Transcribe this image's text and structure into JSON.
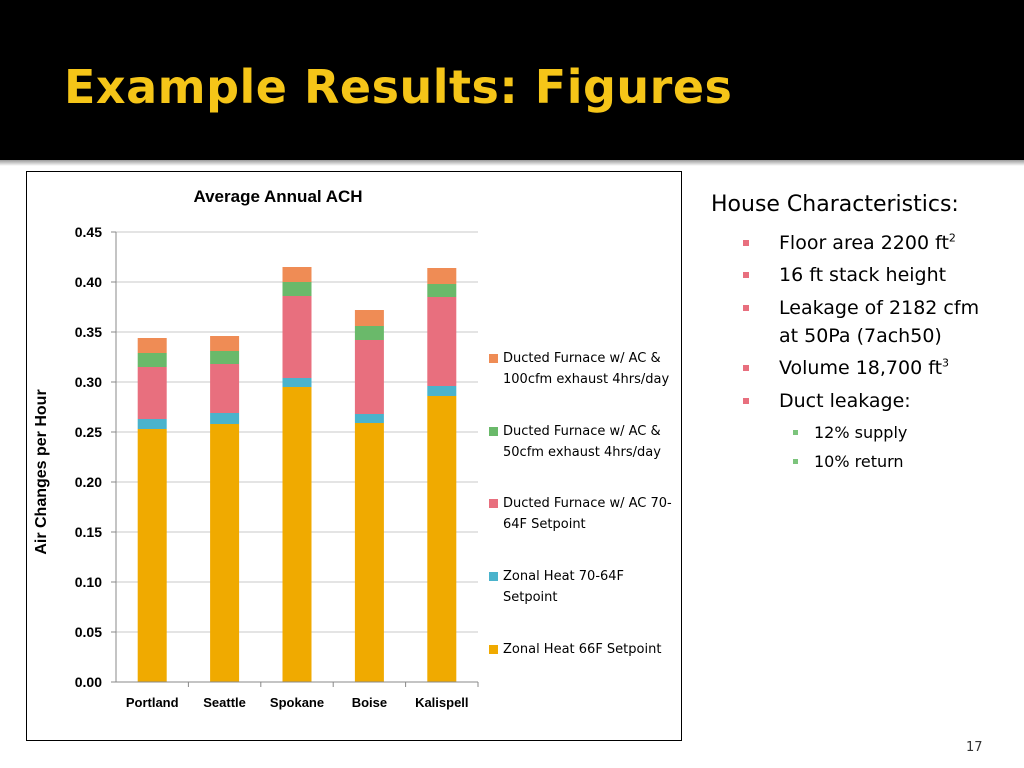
{
  "slide": {
    "title": "Example Results: Figures",
    "page_number": "17",
    "title_color": "#f5c518"
  },
  "house": {
    "heading": "House Characteristics:",
    "bullets": [
      {
        "text": "Floor area 2200 ft",
        "sup": "2"
      },
      {
        "text": "16 ft stack height",
        "sup": ""
      },
      {
        "text": "Leakage of 2182 cfm at 50Pa (7ach50)",
        "sup": ""
      },
      {
        "text": "Volume 18,700 ft",
        "sup": "3"
      },
      {
        "text": "Duct leakage:",
        "sup": ""
      }
    ],
    "sub_bullets": [
      "12% supply",
      "10% return"
    ]
  },
  "chart_data": {
    "type": "bar",
    "stacked": true,
    "title": "Average Annual ACH",
    "xlabel": "",
    "ylabel": "Air Changes per Hour",
    "ylim": [
      0,
      0.45
    ],
    "yticks": [
      "0.00",
      "0.05",
      "0.10",
      "0.15",
      "0.20",
      "0.25",
      "0.30",
      "0.35",
      "0.40",
      "0.45"
    ],
    "grid": true,
    "legend_position": "right",
    "categories": [
      "Portland",
      "Seattle",
      "Spokane",
      "Boise",
      "Kalispell"
    ],
    "series": [
      {
        "name": "Zonal Heat 66F Setpoint",
        "color": "#f0aa00",
        "values": [
          0.253,
          0.258,
          0.295,
          0.259,
          0.286
        ]
      },
      {
        "name": "Zonal Heat 70-64F Setpoint",
        "color": "#4ab3cc",
        "values": [
          0.01,
          0.011,
          0.009,
          0.009,
          0.01
        ]
      },
      {
        "name": "Ducted Furnace w/ AC 70-64F Setpoint",
        "color": "#e86f7e",
        "values": [
          0.052,
          0.049,
          0.082,
          0.074,
          0.089
        ]
      },
      {
        "name": "Ducted Furnace w/ AC & 50cfm exhaust 4hrs/day",
        "color": "#6ab96a",
        "values": [
          0.014,
          0.013,
          0.014,
          0.014,
          0.013
        ]
      },
      {
        "name": "Ducted Furnace w/ AC & 100cfm exhaust 4hrs/day",
        "color": "#ef8c55",
        "values": [
          0.015,
          0.015,
          0.015,
          0.016,
          0.016
        ]
      }
    ]
  }
}
